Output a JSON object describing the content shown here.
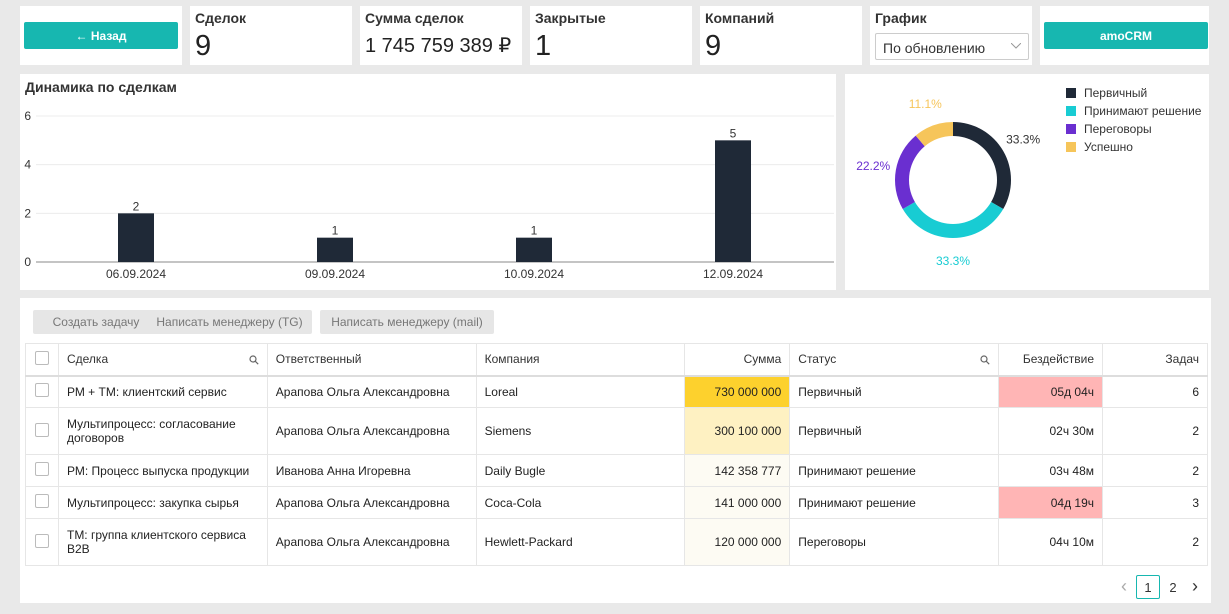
{
  "header": {
    "back_label": "← Назад",
    "stats": [
      {
        "label": "Сделок",
        "value": "9"
      },
      {
        "label": "Сумма сделок",
        "value": "1 745 759 389 ₽"
      },
      {
        "label": "Закрытые",
        "value": "1"
      },
      {
        "label": "Компаний",
        "value": "9"
      }
    ],
    "schedule": {
      "label": "График",
      "selected": "По обновлению"
    },
    "crm_label": "amoCRM"
  },
  "bar_chart": {
    "title": "Динамика по сделкам",
    "chart_data": {
      "type": "bar",
      "categories": [
        "06.09.2024",
        "09.09.2024",
        "10.09.2024",
        "12.09.2024"
      ],
      "values": [
        2,
        1,
        1,
        5
      ],
      "ylim": [
        0,
        6
      ],
      "yticks": [
        0,
        2,
        4,
        6
      ],
      "grid": true,
      "bar_color": "#1f2937"
    }
  },
  "donut_chart": {
    "chart_data": {
      "type": "pie",
      "series": [
        {
          "name": "Первичный",
          "value": 33.3,
          "label": "33.3%",
          "color": "#1f2937"
        },
        {
          "name": "Принимают решение",
          "value": 33.3,
          "label": "33.3%",
          "color": "#18ccd3"
        },
        {
          "name": "Переговоры",
          "value": 22.2,
          "label": "22.2%",
          "color": "#6a2fd0"
        },
        {
          "name": "Успешно",
          "value": 11.1,
          "label": "11.1%",
          "color": "#f6c55a"
        }
      ],
      "legend_position": "top-right"
    }
  },
  "toolbar": {
    "create_task": "Создать задачу",
    "write_tg": "Написать менеджеру (TG)",
    "write_mail": "Написать менеджеру (mail)"
  },
  "table": {
    "columns": [
      "Сделка",
      "Ответственный",
      "Компания",
      "Сумма",
      "Статус",
      "Бездействие",
      "Задач"
    ],
    "rows": [
      {
        "deal": "РМ + ТМ: клиентский сервис",
        "owner": "Арапова Ольга Александровна",
        "company": "Loreal",
        "sum": "730 000 000",
        "status": "Первичный",
        "idle": "05д 04ч",
        "tasks": "6",
        "sum_bg": "#fdd12d",
        "idle_bg": "#ffb5b5"
      },
      {
        "deal": "Мультипроцесс: согласование договоров",
        "owner": "Арапова Ольга Александровна",
        "company": "Siemens",
        "sum": "300 100 000",
        "status": "Первичный",
        "idle": "02ч 30м",
        "tasks": "2",
        "sum_bg": "#fef1c2",
        "idle_bg": "#ffffff"
      },
      {
        "deal": "РМ: Процесс выпуска продукции",
        "owner": "Иванова Анна Игоревна",
        "company": "Daily Bugle",
        "sum": "142 358 777",
        "status": "Принимают решение",
        "idle": "03ч 48м",
        "tasks": "2",
        "sum_bg": "#fdfbf3",
        "idle_bg": "#ffffff"
      },
      {
        "deal": "Мультипроцесс: закупка сырья",
        "owner": "Арапова Ольга Александровна",
        "company": "Coca-Cola",
        "sum": "141 000 000",
        "status": "Принимают решение",
        "idle": "04д 19ч",
        "tasks": "3",
        "sum_bg": "#fdfbf3",
        "idle_bg": "#ffb5b5"
      },
      {
        "deal": "ТМ: группа клиентского сервиса B2B",
        "owner": "Арапова Ольга Александровна",
        "company": "Hewlett-Packard",
        "sum": "120 000 000",
        "status": "Переговоры",
        "idle": "04ч 10м",
        "tasks": "2",
        "sum_bg": "#fdfbf3",
        "idle_bg": "#ffffff"
      }
    ]
  },
  "pagination": {
    "prev": "‹",
    "pages": [
      "1",
      "2"
    ],
    "current": "1",
    "next": "›"
  }
}
